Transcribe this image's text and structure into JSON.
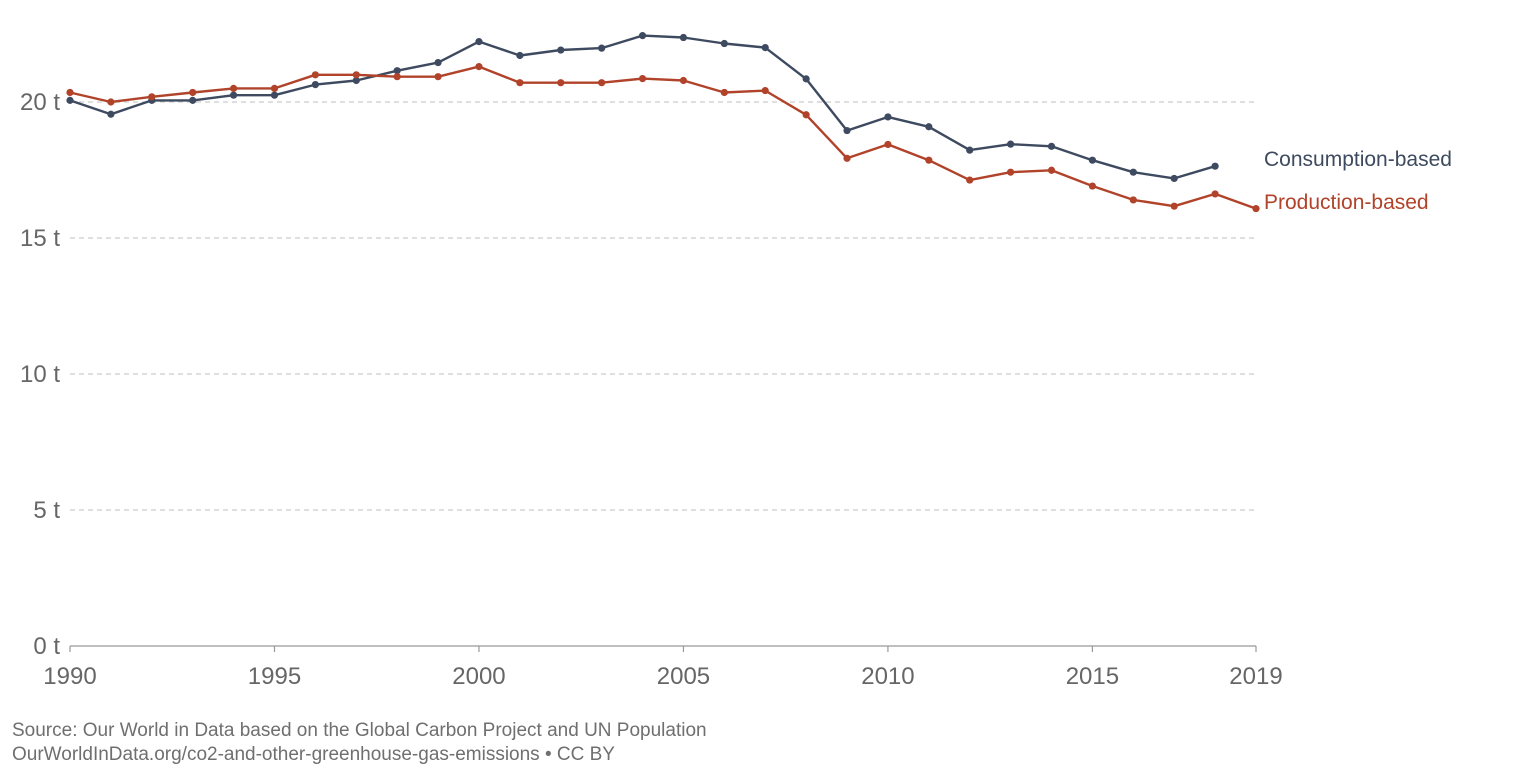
{
  "chart_data": {
    "type": "line",
    "title": "",
    "xlabel": "",
    "ylabel": "",
    "xlim": [
      1990,
      2019
    ],
    "ylim": [
      0,
      22.5
    ],
    "x_ticks": [
      {
        "value": 1990,
        "label": "1990"
      },
      {
        "value": 1995,
        "label": "1995"
      },
      {
        "value": 2000,
        "label": "2000"
      },
      {
        "value": 2005,
        "label": "2005"
      },
      {
        "value": 2010,
        "label": "2010"
      },
      {
        "value": 2015,
        "label": "2015"
      },
      {
        "value": 2019,
        "label": "2019"
      }
    ],
    "y_ticks": [
      {
        "value": 0,
        "label": "0 t"
      },
      {
        "value": 5,
        "label": "5 t"
      },
      {
        "value": 10,
        "label": "10 t"
      },
      {
        "value": 15,
        "label": "15 t"
      },
      {
        "value": 20,
        "label": "20 t"
      }
    ],
    "grid": true,
    "legend": "inline labels at right end of lines",
    "series": [
      {
        "name": "Consumption-based",
        "color": "#3e4a5f",
        "x": [
          1990,
          1991,
          1992,
          1993,
          1994,
          1995,
          1996,
          1997,
          1998,
          1999,
          2000,
          2001,
          2002,
          2003,
          2004,
          2005,
          2006,
          2007,
          2008,
          2009,
          2010,
          2011,
          2012,
          2013,
          2014,
          2015,
          2016,
          2017,
          2018
        ],
        "values": [
          20.06,
          19.55,
          20.06,
          20.06,
          20.25,
          20.25,
          20.64,
          20.79,
          21.15,
          21.45,
          22.22,
          21.71,
          21.91,
          21.98,
          22.44,
          22.37,
          22.15,
          22.0,
          20.85,
          18.95,
          19.45,
          19.09,
          18.23,
          18.45,
          18.37,
          17.86,
          17.42,
          17.19,
          17.64
        ]
      },
      {
        "name": "Production-based",
        "color": "#b1432a",
        "x": [
          1990,
          1991,
          1992,
          1993,
          1994,
          1995,
          1996,
          1997,
          1998,
          1999,
          2000,
          2001,
          2002,
          2003,
          2004,
          2005,
          2006,
          2007,
          2008,
          2009,
          2010,
          2011,
          2012,
          2013,
          2014,
          2015,
          2016,
          2017,
          2018,
          2019
        ],
        "values": [
          20.35,
          20.0,
          20.19,
          20.35,
          20.5,
          20.5,
          21.0,
          21.0,
          20.93,
          20.93,
          21.3,
          20.71,
          20.71,
          20.71,
          20.86,
          20.79,
          20.35,
          20.42,
          19.53,
          17.93,
          18.44,
          17.86,
          17.13,
          17.42,
          17.49,
          16.91,
          16.4,
          16.17,
          16.62,
          16.08
        ]
      }
    ]
  },
  "footer": {
    "source": "Source: Our World in Data based on the Global Carbon Project and UN Population",
    "url_line": "OurWorldInData.org/co2-and-other-greenhouse-gas-emissions • CC BY"
  }
}
